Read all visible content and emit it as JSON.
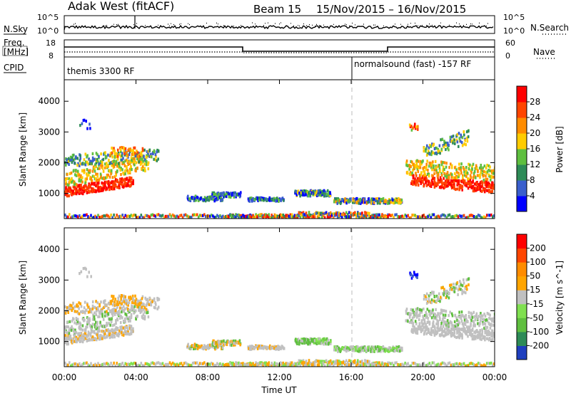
{
  "header": {
    "radar": "Adak West (fitACF)",
    "beam": "Beam 15",
    "dates": "15/Nov/2015 – 16/Nov/2015"
  },
  "status_panels": {
    "nsky": {
      "left_label": "N.Sky",
      "right_label": "N.Search",
      "left_ticks": [
        "10^5",
        "10^0"
      ],
      "right_ticks": [
        "10^5",
        "10^0"
      ]
    },
    "freq": {
      "left_label_1": "Freq.",
      "left_label_2": "[MHz]",
      "right_label": "Nave",
      "left_ticks": [
        "18",
        "8"
      ],
      "right_ticks": [
        "60",
        "0"
      ]
    },
    "cpid": {
      "label": "CPID",
      "segments": [
        "themis 3300 RF",
        "normalsound (fast) -157 RF"
      ]
    }
  },
  "chart_data": [
    {
      "type": "heatmap",
      "name": "power-panel",
      "ylabel": "Slant Range [km]",
      "yticks": [
        1000,
        2000,
        3000,
        4000
      ],
      "colorbar_label": "Power [dB]",
      "colorbar_ticks": [
        "4",
        "8",
        "12",
        "16",
        "20",
        "24",
        "28"
      ],
      "colors": [
        "#0000ff",
        "#3a5fcd",
        "#2e8b57",
        "#5fbf3f",
        "#ffcc00",
        "#ff8c00",
        "#ff4500",
        "#ff0000"
      ]
    },
    {
      "type": "heatmap",
      "name": "velocity-panel",
      "ylabel": "Slant Range [km]",
      "yticks": [
        1000,
        2000,
        3000,
        4000
      ],
      "colorbar_label": "Velocity [m s^-1]",
      "colorbar_ticks": [
        "200",
        "100",
        "50",
        "15",
        "-15",
        "-50",
        "-100",
        "-200"
      ],
      "colors": [
        "#1f3fbf",
        "#2e8b57",
        "#5fbf3f",
        "#80e050",
        "#c0c0c0",
        "#ffa500",
        "#ff8c00",
        "#ff4500",
        "#ff0000"
      ]
    }
  ],
  "xaxis": {
    "label": "Time UT",
    "ticks": [
      "00:00",
      "04:00",
      "08:00",
      "12:00",
      "16:00",
      "20:00",
      "00:00"
    ]
  }
}
